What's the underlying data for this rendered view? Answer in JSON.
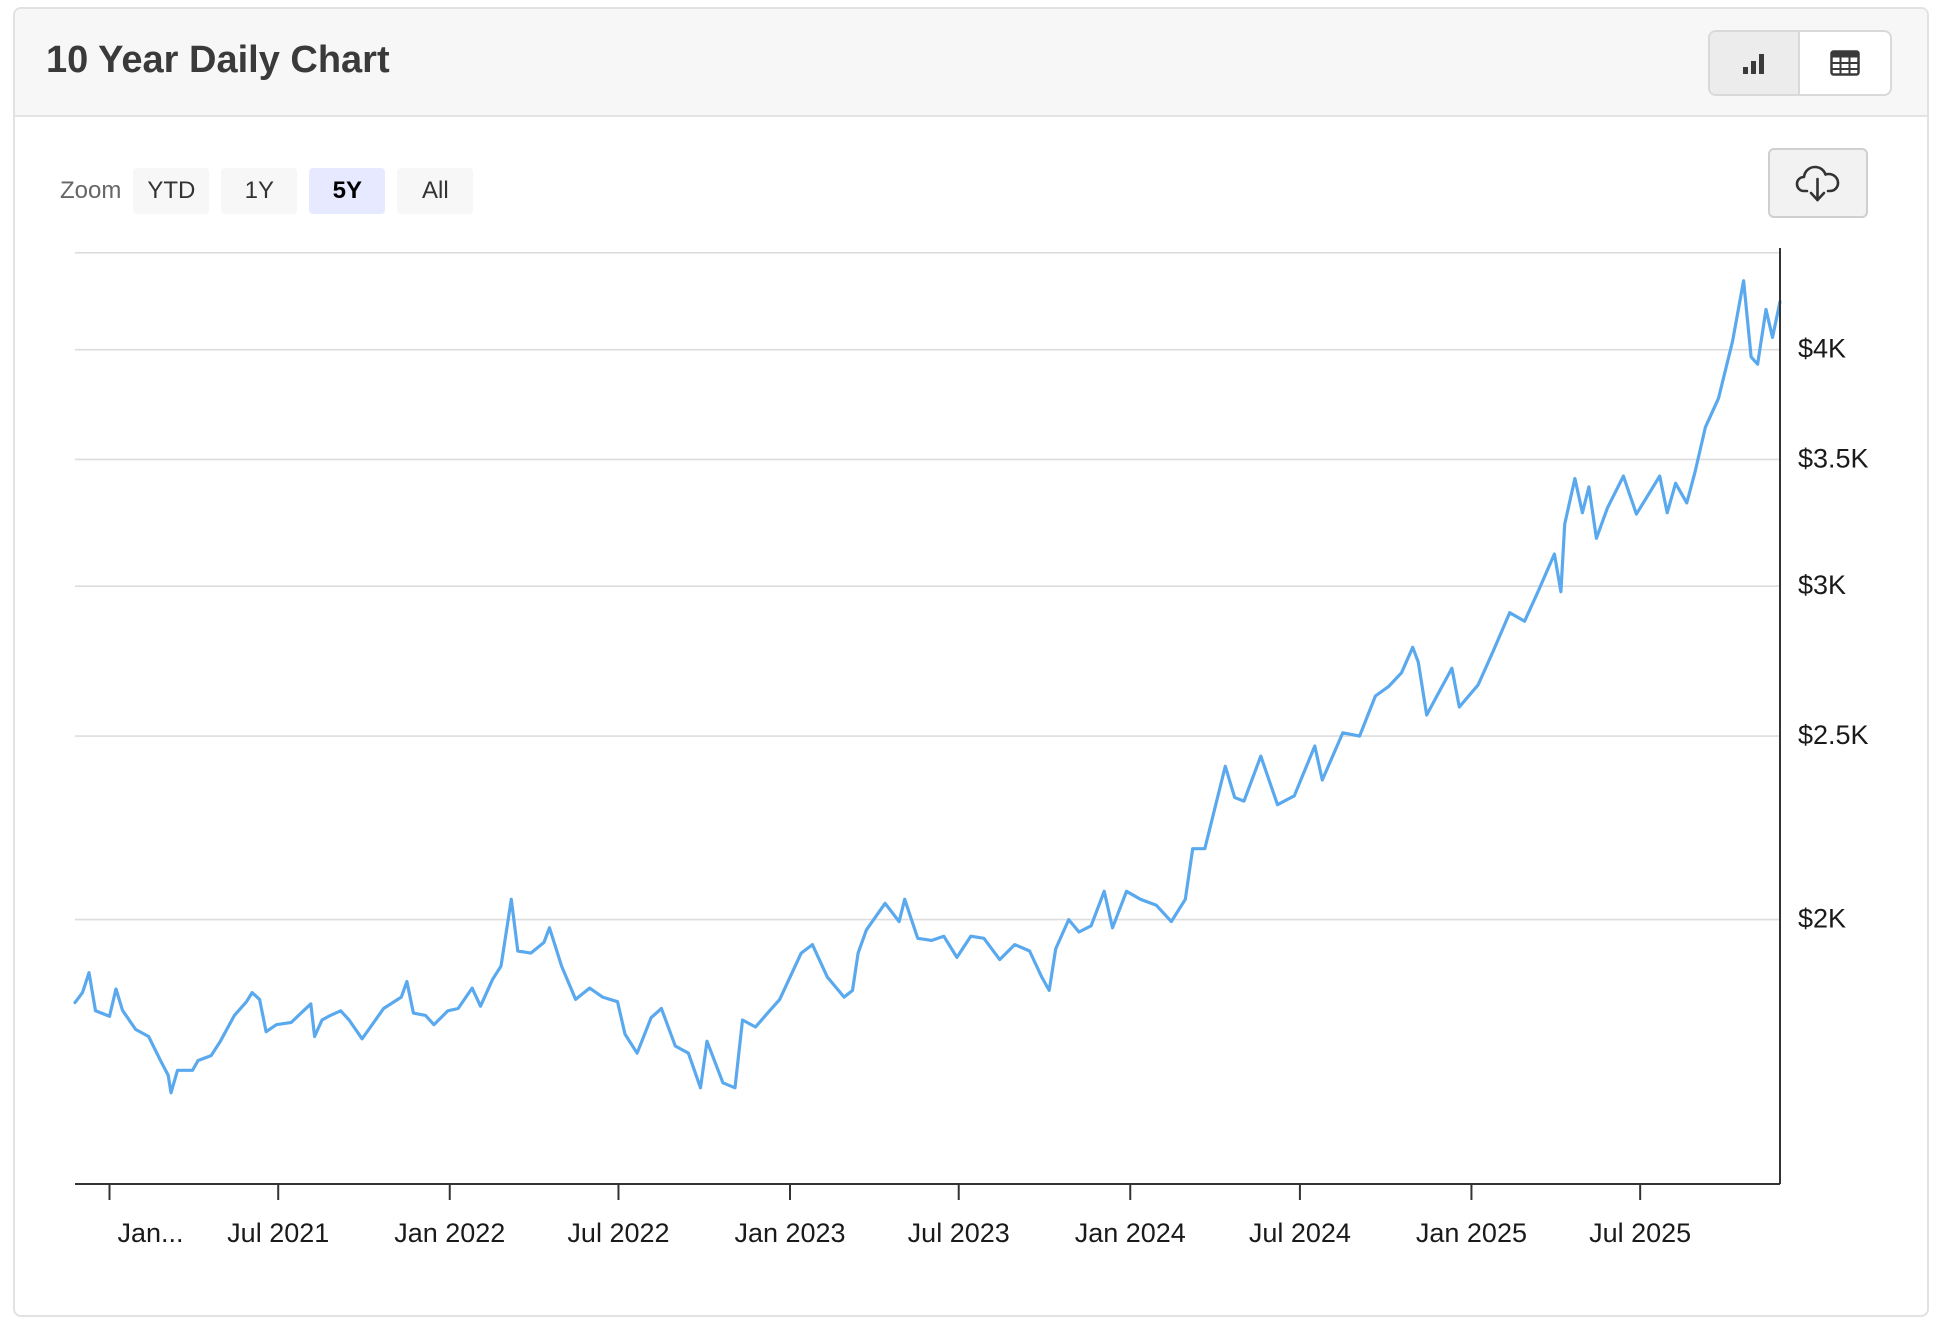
{
  "header": {
    "title": "10 Year Daily Chart",
    "chart_view_icon": "bar-chart-icon",
    "table_view_icon": "table-icon"
  },
  "zoom": {
    "label": "Zoom",
    "options": [
      "YTD",
      "1Y",
      "5Y",
      "All"
    ],
    "selected": "5Y"
  },
  "download": {
    "icon": "cloud-download-icon"
  },
  "colors": {
    "line": "#5aa9ee",
    "grid": "#dddddd",
    "axis": "#333333",
    "zoom_active": "#e6e9ff"
  },
  "chart_data": {
    "type": "line",
    "title": "",
    "xlabel": "",
    "ylabel": "",
    "y_scale": "log",
    "ylim": [
      1450,
      4450
    ],
    "xlim": [
      "2020-11-25",
      "2025-11-28"
    ],
    "y_ticks": [
      {
        "value": 2000,
        "label": "$2K"
      },
      {
        "value": 2500,
        "label": "$2.5K"
      },
      {
        "value": 3000,
        "label": "$3K"
      },
      {
        "value": 3500,
        "label": "$3.5K"
      },
      {
        "value": 4000,
        "label": "$4K"
      }
    ],
    "y_gridlines": [
      2000,
      2500,
      3000,
      3500,
      4000,
      4500
    ],
    "x_ticks": [
      {
        "date": "2021-01-01",
        "label": "Jan..."
      },
      {
        "date": "2021-07-01",
        "label": "Jul 2021"
      },
      {
        "date": "2022-01-01",
        "label": "Jan 2022"
      },
      {
        "date": "2022-07-01",
        "label": "Jul 2022"
      },
      {
        "date": "2023-01-01",
        "label": "Jan 2023"
      },
      {
        "date": "2023-07-01",
        "label": "Jul 2023"
      },
      {
        "date": "2024-01-01",
        "label": "Jan 2024"
      },
      {
        "date": "2024-07-01",
        "label": "Jul 2024"
      },
      {
        "date": "2025-01-01",
        "label": "Jan 2025"
      },
      {
        "date": "2025-07-01",
        "label": "Jul 2025"
      }
    ],
    "series": [
      {
        "name": "",
        "color": "#5aa9ee",
        "points": [
          [
            "2020-11-25",
            1808
          ],
          [
            "2020-12-03",
            1830
          ],
          [
            "2020-12-10",
            1875
          ],
          [
            "2020-12-17",
            1790
          ],
          [
            "2021-01-01",
            1778
          ],
          [
            "2021-01-08",
            1838
          ],
          [
            "2021-01-15",
            1791
          ],
          [
            "2021-01-29",
            1750
          ],
          [
            "2021-02-12",
            1735
          ],
          [
            "2021-02-26",
            1680
          ],
          [
            "2021-03-05",
            1655
          ],
          [
            "2021-03-08",
            1620
          ],
          [
            "2021-03-15",
            1665
          ],
          [
            "2021-03-31",
            1665
          ],
          [
            "2021-04-06",
            1685
          ],
          [
            "2021-04-20",
            1695
          ],
          [
            "2021-04-30",
            1725
          ],
          [
            "2021-05-15",
            1780
          ],
          [
            "2021-05-28",
            1810
          ],
          [
            "2021-06-03",
            1830
          ],
          [
            "2021-06-11",
            1815
          ],
          [
            "2021-06-18",
            1745
          ],
          [
            "2021-06-29",
            1760
          ],
          [
            "2021-07-15",
            1765
          ],
          [
            "2021-07-28",
            1790
          ],
          [
            "2021-08-05",
            1805
          ],
          [
            "2021-08-09",
            1735
          ],
          [
            "2021-08-17",
            1770
          ],
          [
            "2021-08-26",
            1780
          ],
          [
            "2021-09-06",
            1790
          ],
          [
            "2021-09-15",
            1770
          ],
          [
            "2021-09-29",
            1730
          ],
          [
            "2021-10-08",
            1755
          ],
          [
            "2021-10-22",
            1795
          ],
          [
            "2021-11-10",
            1820
          ],
          [
            "2021-11-16",
            1855
          ],
          [
            "2021-11-23",
            1785
          ],
          [
            "2021-12-06",
            1780
          ],
          [
            "2021-12-15",
            1760
          ],
          [
            "2021-12-30",
            1790
          ],
          [
            "2022-01-10",
            1795
          ],
          [
            "2022-01-25",
            1840
          ],
          [
            "2022-02-03",
            1800
          ],
          [
            "2022-02-16",
            1860
          ],
          [
            "2022-02-25",
            1890
          ],
          [
            "2022-03-08",
            2050
          ],
          [
            "2022-03-15",
            1925
          ],
          [
            "2022-03-29",
            1920
          ],
          [
            "2022-04-12",
            1945
          ],
          [
            "2022-04-18",
            1980
          ],
          [
            "2022-05-01",
            1890
          ],
          [
            "2022-05-16",
            1815
          ],
          [
            "2022-05-31",
            1840
          ],
          [
            "2022-06-14",
            1820
          ],
          [
            "2022-06-30",
            1810
          ],
          [
            "2022-07-08",
            1740
          ],
          [
            "2022-07-21",
            1700
          ],
          [
            "2022-08-05",
            1775
          ],
          [
            "2022-08-16",
            1795
          ],
          [
            "2022-08-31",
            1715
          ],
          [
            "2022-09-14",
            1700
          ],
          [
            "2022-09-27",
            1630
          ],
          [
            "2022-10-04",
            1725
          ],
          [
            "2022-10-21",
            1640
          ],
          [
            "2022-11-03",
            1630
          ],
          [
            "2022-11-11",
            1770
          ],
          [
            "2022-11-25",
            1755
          ],
          [
            "2022-12-08",
            1785
          ],
          [
            "2022-12-21",
            1815
          ],
          [
            "2023-01-13",
            1920
          ],
          [
            "2023-01-25",
            1940
          ],
          [
            "2023-02-10",
            1865
          ],
          [
            "2023-02-28",
            1820
          ],
          [
            "2023-03-09",
            1835
          ],
          [
            "2023-03-15",
            1920
          ],
          [
            "2023-03-24",
            1975
          ],
          [
            "2023-04-13",
            2040
          ],
          [
            "2023-04-28",
            1995
          ],
          [
            "2023-05-04",
            2050
          ],
          [
            "2023-05-18",
            1955
          ],
          [
            "2023-06-02",
            1950
          ],
          [
            "2023-06-15",
            1960
          ],
          [
            "2023-06-29",
            1910
          ],
          [
            "2023-07-14",
            1960
          ],
          [
            "2023-07-28",
            1955
          ],
          [
            "2023-08-14",
            1905
          ],
          [
            "2023-08-30",
            1940
          ],
          [
            "2023-09-15",
            1925
          ],
          [
            "2023-09-28",
            1865
          ],
          [
            "2023-10-06",
            1835
          ],
          [
            "2023-10-13",
            1930
          ],
          [
            "2023-10-27",
            2000
          ],
          [
            "2023-11-07",
            1970
          ],
          [
            "2023-11-20",
            1985
          ],
          [
            "2023-12-04",
            2070
          ],
          [
            "2023-12-13",
            1980
          ],
          [
            "2023-12-28",
            2070
          ],
          [
            "2024-01-12",
            2050
          ],
          [
            "2024-01-29",
            2035
          ],
          [
            "2024-02-14",
            1995
          ],
          [
            "2024-02-29",
            2050
          ],
          [
            "2024-03-08",
            2180
          ],
          [
            "2024-03-21",
            2180
          ],
          [
            "2024-04-12",
            2410
          ],
          [
            "2024-04-22",
            2320
          ],
          [
            "2024-05-02",
            2310
          ],
          [
            "2024-05-20",
            2440
          ],
          [
            "2024-06-07",
            2300
          ],
          [
            "2024-06-25",
            2325
          ],
          [
            "2024-07-17",
            2470
          ],
          [
            "2024-07-25",
            2370
          ],
          [
            "2024-08-16",
            2510
          ],
          [
            "2024-09-03",
            2500
          ],
          [
            "2024-09-20",
            2625
          ],
          [
            "2024-10-04",
            2655
          ],
          [
            "2024-10-18",
            2700
          ],
          [
            "2024-10-30",
            2785
          ],
          [
            "2024-11-05",
            2735
          ],
          [
            "2024-11-14",
            2565
          ],
          [
            "2024-11-25",
            2625
          ],
          [
            "2024-12-11",
            2715
          ],
          [
            "2024-12-19",
            2590
          ],
          [
            "2025-01-08",
            2660
          ],
          [
            "2025-01-24",
            2770
          ],
          [
            "2025-02-11",
            2905
          ],
          [
            "2025-02-27",
            2875
          ],
          [
            "2025-03-14",
            2985
          ],
          [
            "2025-03-31",
            3120
          ],
          [
            "2025-04-07",
            2980
          ],
          [
            "2025-04-11",
            3235
          ],
          [
            "2025-04-22",
            3420
          ],
          [
            "2025-04-30",
            3280
          ],
          [
            "2025-05-07",
            3385
          ],
          [
            "2025-05-15",
            3180
          ],
          [
            "2025-05-27",
            3300
          ],
          [
            "2025-06-13",
            3430
          ],
          [
            "2025-06-27",
            3275
          ],
          [
            "2025-07-22",
            3430
          ],
          [
            "2025-07-30",
            3280
          ],
          [
            "2025-08-08",
            3400
          ],
          [
            "2025-08-20",
            3320
          ],
          [
            "2025-08-29",
            3450
          ],
          [
            "2025-09-09",
            3640
          ],
          [
            "2025-09-23",
            3770
          ],
          [
            "2025-10-08",
            4040
          ],
          [
            "2025-10-20",
            4350
          ],
          [
            "2025-10-28",
            3965
          ],
          [
            "2025-11-04",
            3930
          ],
          [
            "2025-11-13",
            4200
          ],
          [
            "2025-11-20",
            4060
          ],
          [
            "2025-11-28",
            4240
          ]
        ]
      }
    ]
  }
}
